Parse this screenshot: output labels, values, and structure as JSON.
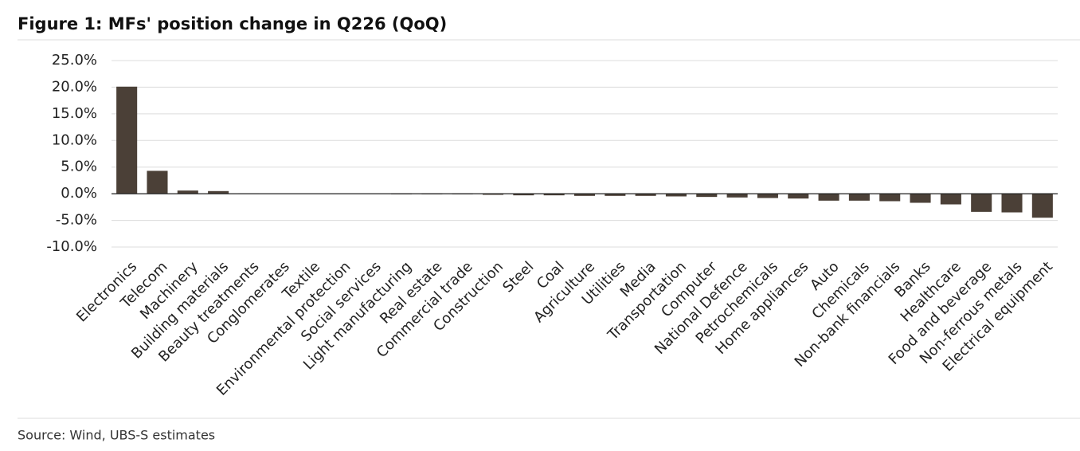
{
  "chart_data": {
    "type": "bar",
    "title": "Figure 1: MFs' position change in Q226 (QoQ)",
    "source": "Source: Wind, UBS-S estimates",
    "categories": [
      "Electronics",
      "Telecom",
      "Machinery",
      "Building materials",
      "Beauty treatments",
      "Conglomerates",
      "Textile",
      "Environmental protection",
      "Social services",
      "Light manufacturing",
      "Real estate",
      "Commercial trade",
      "Construction",
      "Steel",
      "Coal",
      "Agriculture",
      "Utilities",
      "Media",
      "Transportation",
      "Computer",
      "National Defence",
      "Petrochemicals",
      "Home appliances",
      "Auto",
      "Chemicals",
      "Non-bank financials",
      "Banks",
      "Healthcare",
      "Food and beverage",
      "Non-ferrous metals",
      "Electrical equipment"
    ],
    "values": [
      20.1,
      4.3,
      0.6,
      0.5,
      0.1,
      0.05,
      0.0,
      0.0,
      -0.05,
      -0.1,
      -0.1,
      -0.1,
      -0.2,
      -0.3,
      -0.3,
      -0.4,
      -0.4,
      -0.4,
      -0.5,
      -0.6,
      -0.7,
      -0.8,
      -0.9,
      -1.3,
      -1.3,
      -1.4,
      -1.7,
      -2.0,
      -3.4,
      -3.5,
      -4.5
    ],
    "color": "#4b4037",
    "ylim": [
      -10,
      25
    ],
    "yticks": [
      {
        "value": -10,
        "label": "-10.0%"
      },
      {
        "value": -5,
        "label": "-5.0%"
      },
      {
        "value": 0,
        "label": "0.0%"
      },
      {
        "value": 5,
        "label": "5.0%"
      },
      {
        "value": 10,
        "label": "10.0%"
      },
      {
        "value": 15,
        "label": "15.0%"
      },
      {
        "value": 20,
        "label": "20.0%"
      },
      {
        "value": 25,
        "label": "25.0%"
      }
    ],
    "grid": true
  }
}
